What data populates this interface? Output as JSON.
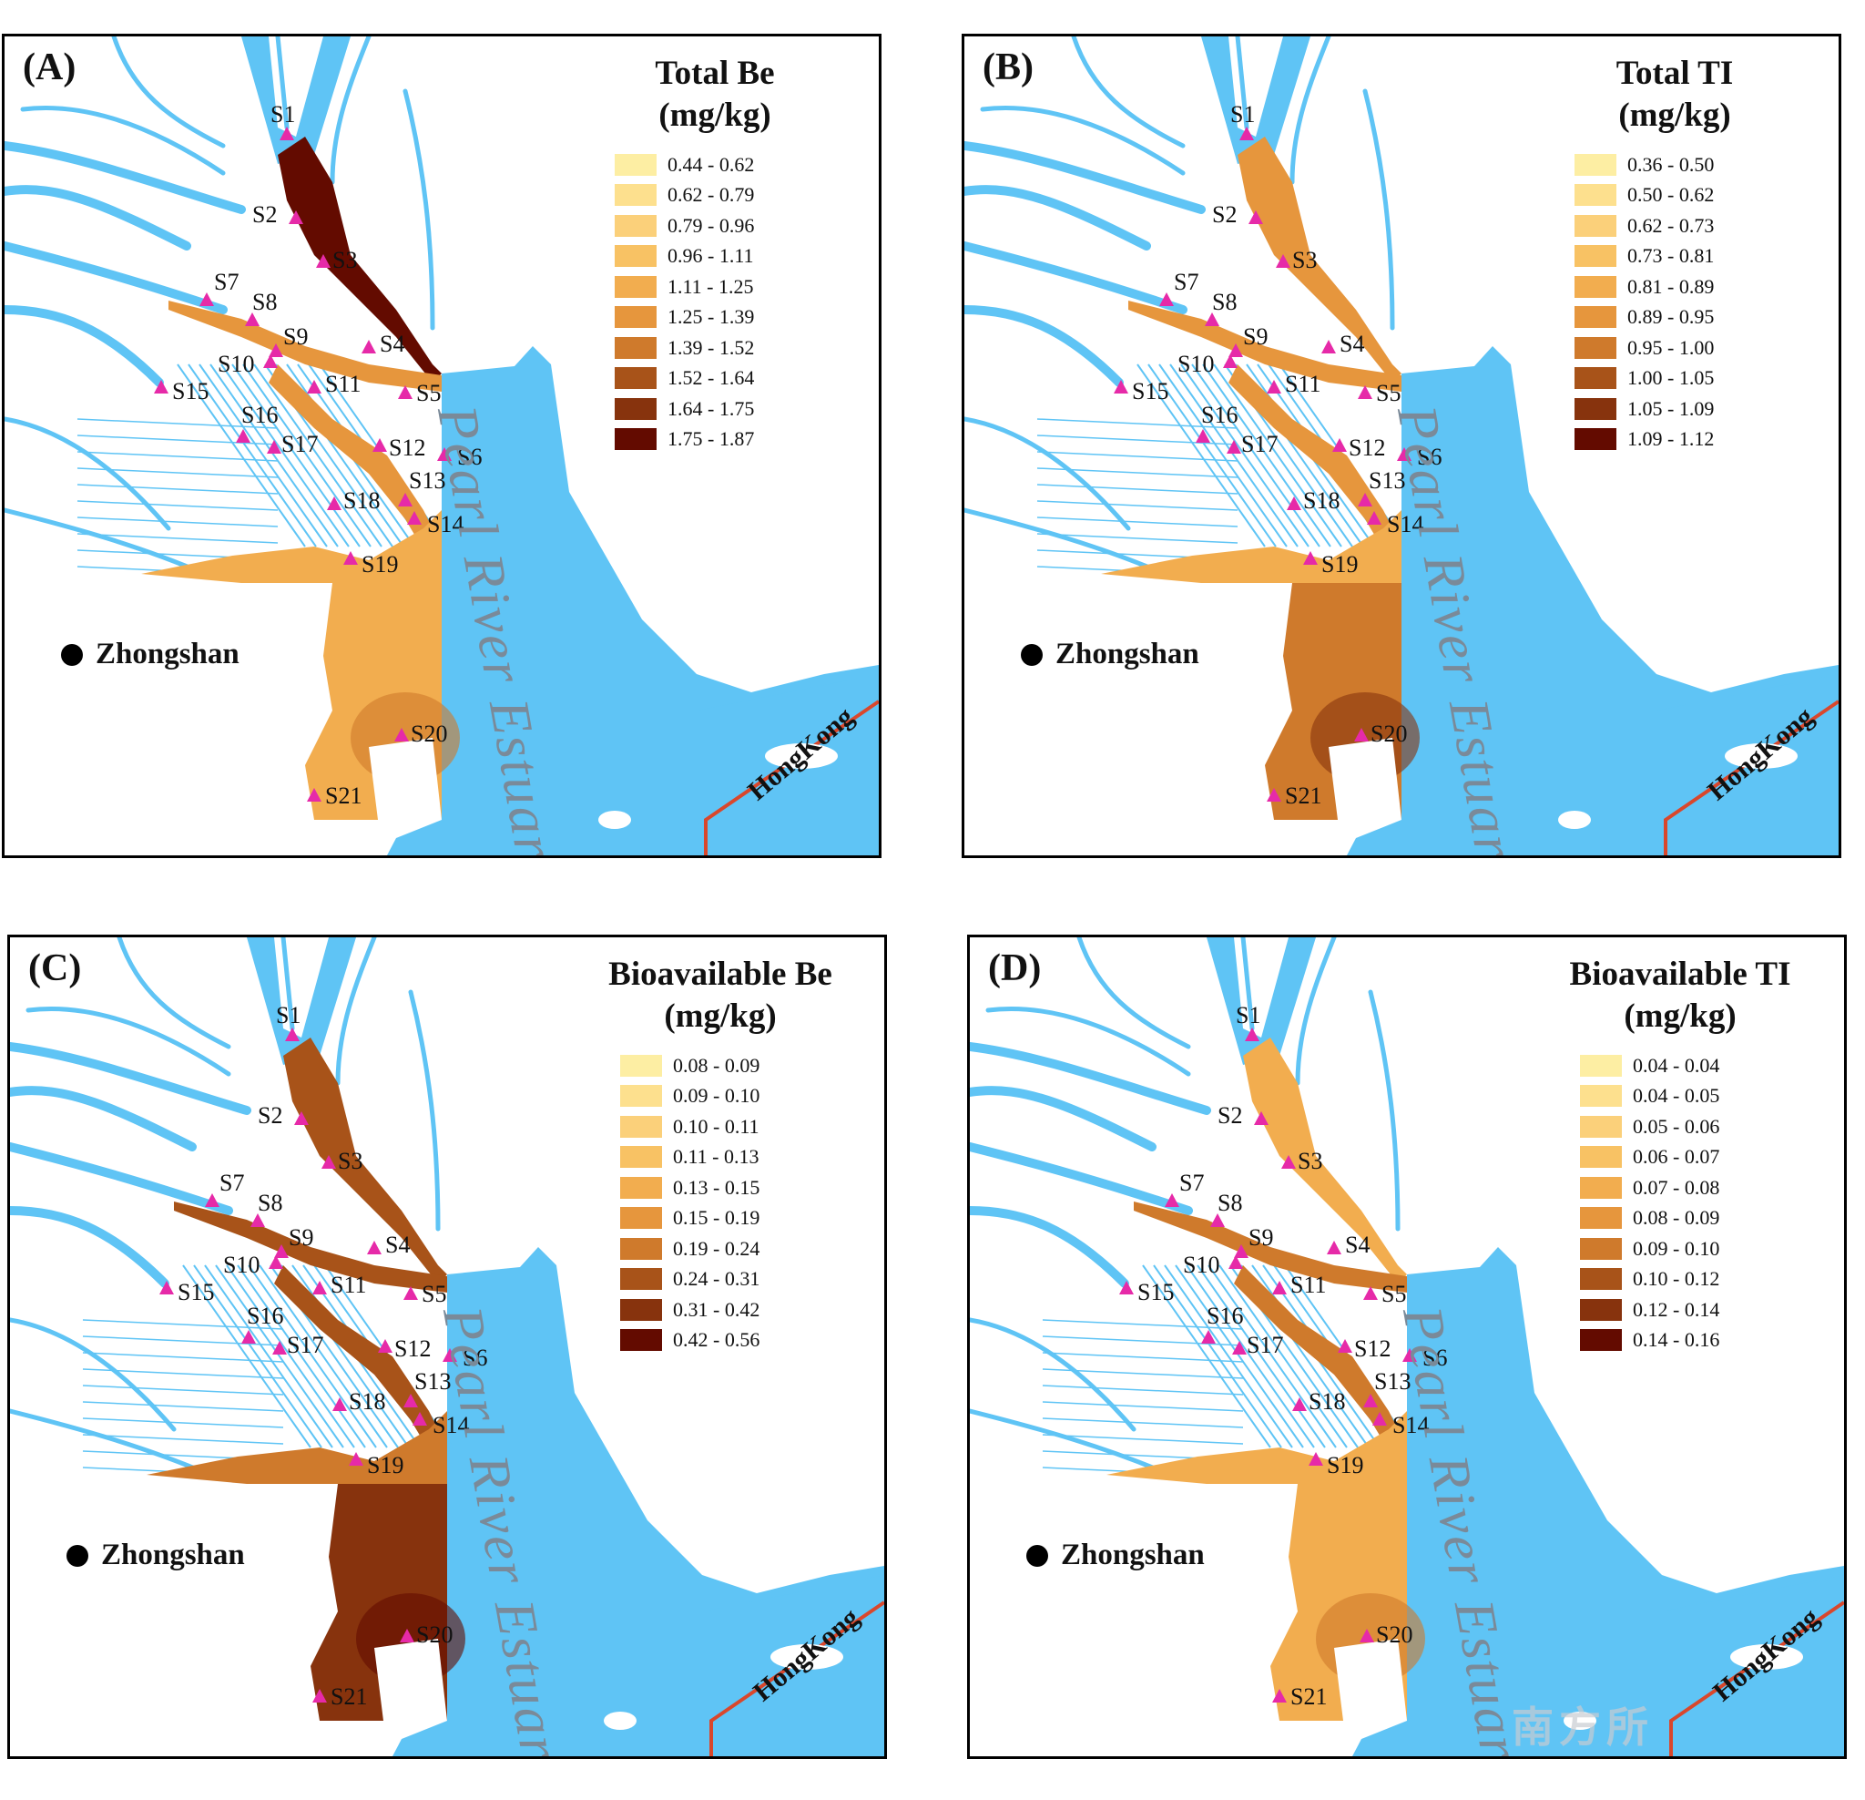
{
  "city": "Zhongshan",
  "hongkong": "HongKong",
  "estuary": "Pearl River Estuary",
  "watermark": "南方所",
  "colors": {
    "water": "#5fc4f5",
    "marker": "#e62aa8",
    "border": "#d9472c",
    "ramp": [
      "#fdeea3",
      "#fde08e",
      "#fbd07a",
      "#f8c264",
      "#f2ad4f",
      "#e6963d",
      "#cf7a2c",
      "#a85319",
      "#87330d",
      "#630b00"
    ]
  },
  "sites": [
    "S1",
    "S2",
    "S3",
    "S4",
    "S5",
    "S6",
    "S7",
    "S8",
    "S9",
    "S10",
    "S11",
    "S12",
    "S13",
    "S14",
    "S15",
    "S16",
    "S17",
    "S18",
    "S19",
    "S20",
    "S21"
  ],
  "panels": [
    {
      "id": "A",
      "label": "(A)",
      "title": "Total Be\n(mg/kg)",
      "ranges": [
        "0.44 - 0.62",
        "0.62 - 0.79",
        "0.79 - 0.96",
        "0.96 - 1.11",
        "1.11 - 1.25",
        "1.25 - 1.39",
        "1.39 - 1.52",
        "1.52 - 1.64",
        "1.64 - 1.75",
        "1.75 - 1.87"
      ]
    },
    {
      "id": "B",
      "label": "(B)",
      "title": "Total TI\n(mg/kg)",
      "ranges": [
        "0.36 - 0.50",
        "0.50 - 0.62",
        "0.62 - 0.73",
        "0.73 - 0.81",
        "0.81 - 0.89",
        "0.89 - 0.95",
        "0.95 - 1.00",
        "1.00 - 1.05",
        "1.05 - 1.09",
        "1.09 - 1.12"
      ]
    },
    {
      "id": "C",
      "label": "(C)",
      "title": "Bioavailable Be\n(mg/kg)",
      "ranges": [
        "0.08 - 0.09",
        "0.09 - 0.10",
        "0.10 - 0.11",
        "0.11 - 0.13",
        "0.13 - 0.15",
        "0.15 - 0.19",
        "0.19 - 0.24",
        "0.24 - 0.31",
        "0.31 - 0.42",
        "0.42 - 0.56"
      ]
    },
    {
      "id": "D",
      "label": "(D)",
      "title": "Bioavailable TI\n(mg/kg)",
      "ranges": [
        "0.04 - 0.04",
        "0.04 - 0.05",
        "0.05 - 0.06",
        "0.06 - 0.07",
        "0.07 - 0.08",
        "0.08 - 0.09",
        "0.09 - 0.10",
        "0.10 - 0.12",
        "0.12 - 0.14",
        "0.14 - 0.16"
      ]
    }
  ]
}
